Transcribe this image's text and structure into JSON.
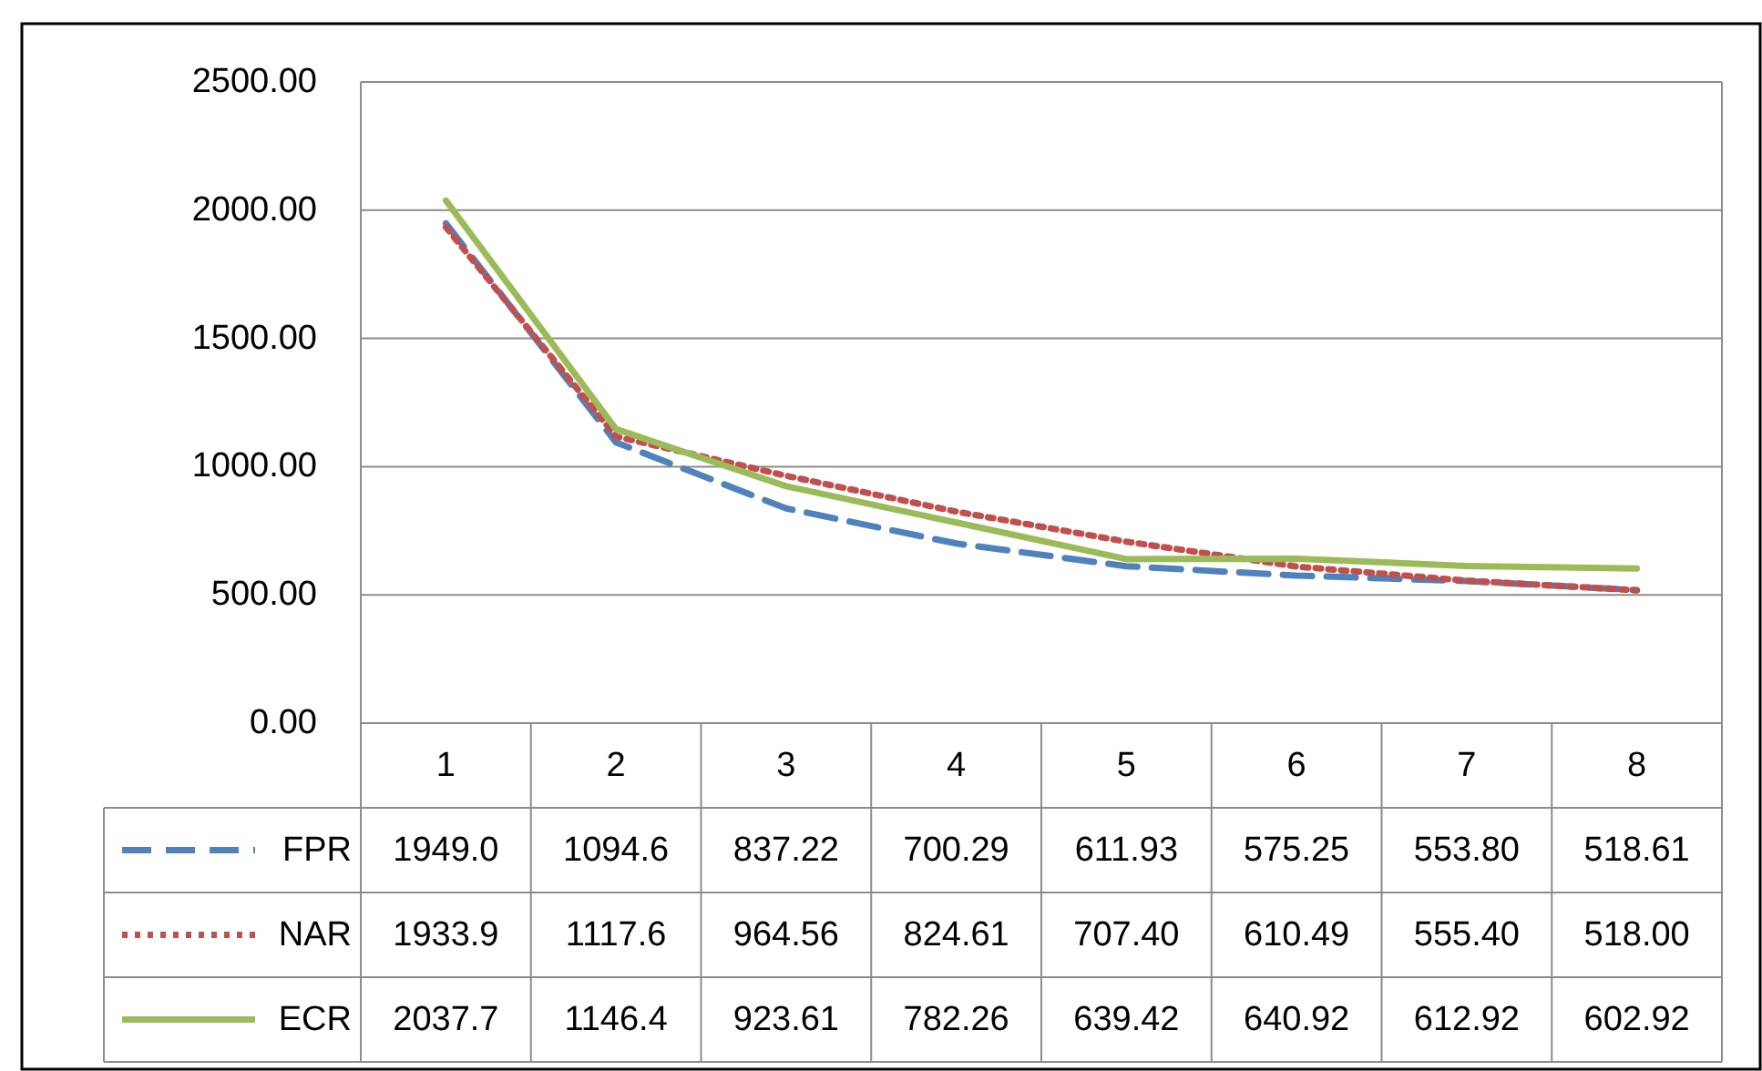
{
  "chart_data": {
    "type": "line",
    "categories": [
      "1",
      "2",
      "3",
      "4",
      "5",
      "6",
      "7",
      "8"
    ],
    "ylim": [
      0,
      2500
    ],
    "yticks": [
      {
        "value": 0,
        "label": "0.00"
      },
      {
        "value": 500,
        "label": "500.00"
      },
      {
        "value": 1000,
        "label": "1000.00"
      },
      {
        "value": 1500,
        "label": "1500.00"
      },
      {
        "value": 2000,
        "label": "2000.00"
      },
      {
        "value": 2500,
        "label": "2500.00"
      }
    ],
    "grid": "y",
    "legend": "bottom",
    "marker": "none",
    "series": [
      {
        "name": "FPR",
        "color": "#4f81bd",
        "line_style": "dashed",
        "values": [
          1949.0,
          1094.6,
          837.22,
          700.29,
          611.93,
          575.25,
          553.8,
          518.61
        ],
        "value_labels": [
          "1949.0",
          "1094.6",
          "837.22",
          "700.29",
          "611.93",
          "575.25",
          "553.80",
          "518.61"
        ]
      },
      {
        "name": "NAR",
        "color": "#c0504d",
        "line_style": "dotted",
        "values": [
          1933.9,
          1117.6,
          964.56,
          824.61,
          707.4,
          610.49,
          555.4,
          518.0
        ],
        "value_labels": [
          "1933.9",
          "1117.6",
          "964.56",
          "824.61",
          "707.40",
          "610.49",
          "555.40",
          "518.00"
        ]
      },
      {
        "name": "ECR",
        "color": "#9bbb59",
        "line_style": "solid",
        "values": [
          2037.7,
          1146.4,
          923.61,
          782.26,
          639.42,
          640.92,
          612.92,
          602.92
        ],
        "value_labels": [
          "2037.7",
          "1146.4",
          "923.61",
          "782.26",
          "639.42",
          "640.92",
          "612.92",
          "602.92"
        ]
      }
    ]
  }
}
